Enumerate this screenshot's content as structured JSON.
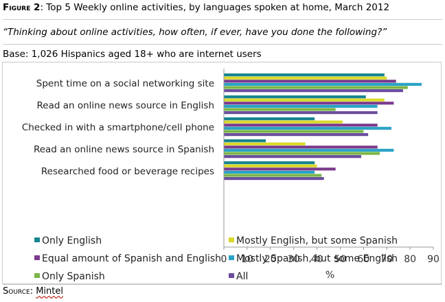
{
  "header": {
    "figure_label": "Figure 2",
    "figure_label_sep": ": ",
    "title": "Top 5 Weekly online activities, by languages spoken at home, March 2012",
    "question": "“Thinking about online activities, how often, if ever, have you done the following?”",
    "base": "Base: 1,026 Hispanics aged 18+ who are internet users"
  },
  "source": {
    "label": "Source",
    "sep": ": ",
    "value": "Mintel"
  },
  "chart_data": {
    "type": "bar",
    "orientation": "horizontal",
    "title": "",
    "xlabel": "%",
    "ylabel": "",
    "xlim": [
      0,
      90
    ],
    "xticks": [
      0,
      10,
      20,
      30,
      40,
      50,
      60,
      70,
      80,
      90
    ],
    "grid": false,
    "legend_position": "bottom",
    "categories": [
      "Spent time on a social networking site",
      "Read an online news source in English",
      "Checked in with a smartphone/cell phone",
      "Read an online news source in Spanish",
      "Researched food or beverage recipes"
    ],
    "series": [
      {
        "name": "Only English",
        "color": "#17858f",
        "values": [
          69,
          61,
          39,
          18,
          39
        ]
      },
      {
        "name": "Mostly English, but some Spanish",
        "color": "#d8d82a",
        "values": [
          70,
          69,
          51,
          35,
          40
        ]
      },
      {
        "name": "Equal amount of Spanish and English",
        "color": "#7b3a8c",
        "values": [
          74,
          73,
          66,
          66,
          48
        ]
      },
      {
        "name": "Mostly Spanish, but some English",
        "color": "#2aa3c6",
        "values": [
          85,
          66,
          72,
          73,
          39
        ]
      },
      {
        "name": "Only Spanish",
        "color": "#7ab648",
        "values": [
          79,
          48,
          60,
          67,
          42
        ]
      },
      {
        "name": "All",
        "color": "#6b4e9e",
        "values": [
          77,
          66,
          62,
          59,
          43
        ]
      }
    ]
  }
}
